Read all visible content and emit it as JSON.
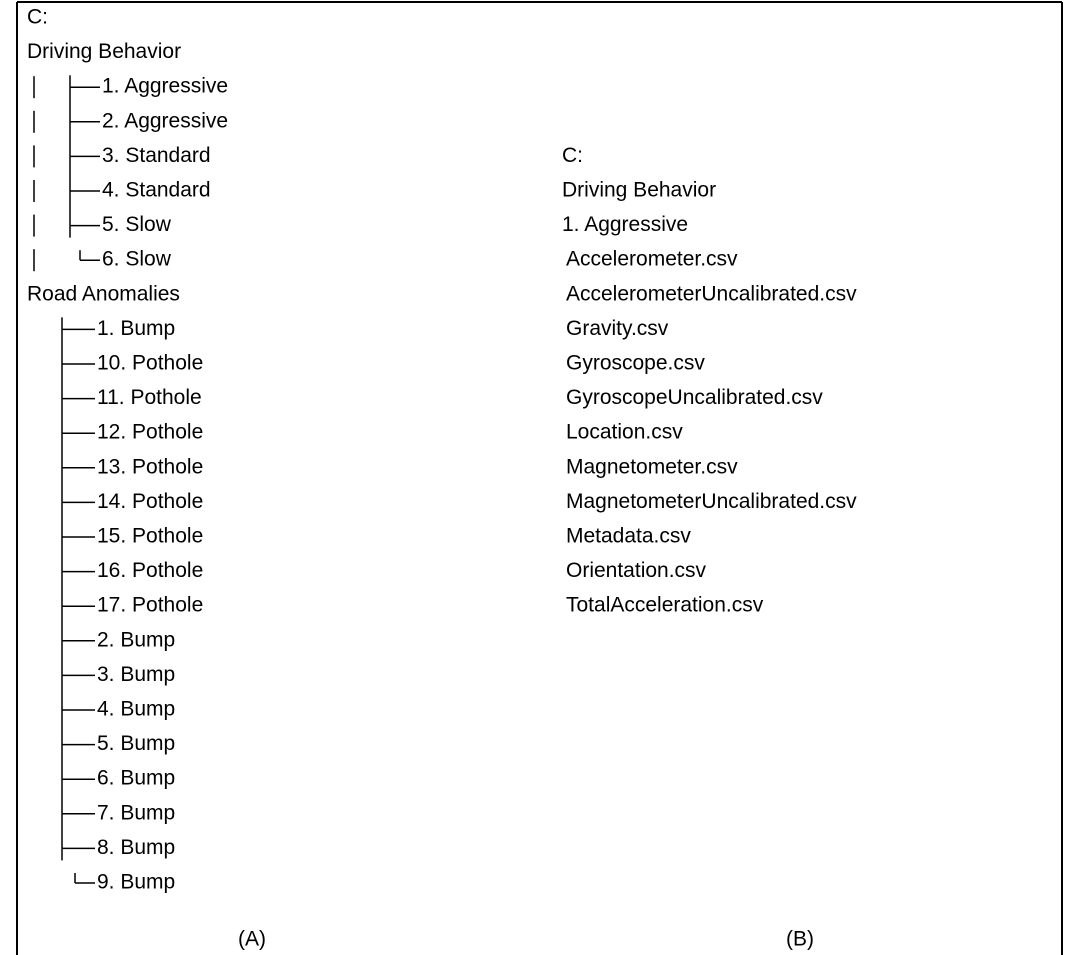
{
  "tree_a": {
    "root": "C:",
    "groups": [
      {
        "name": "Driving Behavior",
        "items": [
          "1. Aggressive",
          "2. Aggressive",
          "3. Standard",
          "4. Standard",
          "5. Slow",
          "6. Slow"
        ]
      },
      {
        "name": "Road Anomalies",
        "items": [
          "1. Bump",
          "10. Pothole",
          "11. Pothole",
          "12. Pothole",
          "13. Pothole",
          "14. Pothole",
          "15. Pothole",
          "16. Pothole",
          "17. Pothole",
          "2. Bump",
          "3. Bump",
          "4. Bump",
          "5. Bump",
          "6. Bump",
          "7. Bump",
          "8. Bump",
          "9. Bump"
        ]
      }
    ],
    "caption": "(A)"
  },
  "tree_b": {
    "root": "C:",
    "folder": "Driving Behavior",
    "subfolder": "1. Aggressive",
    "files": [
      "Accelerometer.csv",
      "AccelerometerUncalibrated.csv",
      "Gravity.csv",
      "Gyroscope.csv",
      "GyroscopeUncalibrated.csv",
      "Location.csv",
      "Magnetometer.csv",
      "MagnetometerUncalibrated.csv",
      "Metadata.csv",
      "Orientation.csv",
      "TotalAcceleration.csv"
    ],
    "caption": "(B)"
  }
}
